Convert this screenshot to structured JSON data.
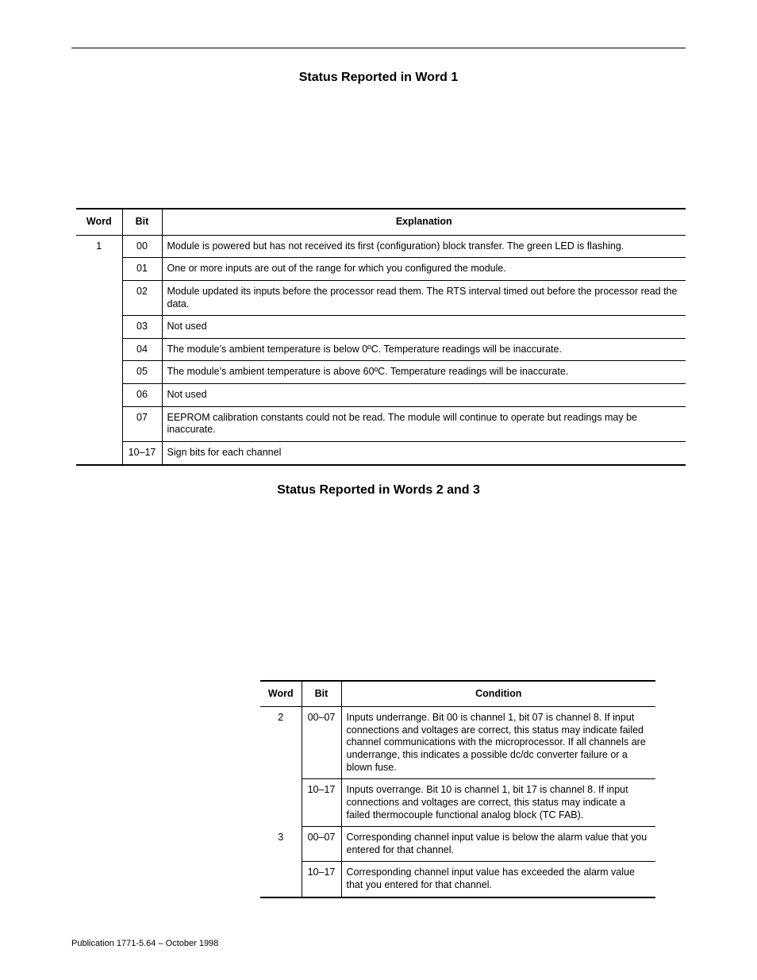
{
  "title1": "Status Reported in Word 1",
  "title2": "Status Reported in Words 2 and 3",
  "footer": "Publication 1771-5.64 – October 1998",
  "table1": {
    "headers": {
      "word": "Word",
      "bit": "Bit",
      "explanation": "Explanation"
    },
    "word": "1",
    "rows": [
      {
        "bit": "00",
        "exp": "Module is powered but has not received its first (configuration) block transfer. The green LED is flashing."
      },
      {
        "bit": "01",
        "exp": "One or more inputs are out of the range for which you configured the module."
      },
      {
        "bit": "02",
        "exp": "Module updated its inputs before the processor read them. The RTS interval timed out before the processor read the data."
      },
      {
        "bit": "03",
        "exp": "Not used"
      },
      {
        "bit": "04",
        "exp": "The module’s ambient temperature is below 0ºC. Temperature readings will be inaccurate."
      },
      {
        "bit": "05",
        "exp": "The module’s ambient temperature is above 60ºC. Temperature readings will be inaccurate."
      },
      {
        "bit": "06",
        "exp": "Not used"
      },
      {
        "bit": "07",
        "exp": "EEPROM calibration constants could not be read. The module will continue to operate but readings may be inaccurate."
      },
      {
        "bit": "10–17",
        "exp": "Sign bits for each channel"
      }
    ]
  },
  "table2": {
    "headers": {
      "word": "Word",
      "bit": "Bit",
      "condition": "Condition"
    },
    "groups": [
      {
        "word": "2",
        "rows": [
          {
            "bit": "00–07",
            "cond": "Inputs underrange. Bit 00 is channel 1, bit 07 is channel 8. If input connections and voltages are correct, this status may indicate failed channel communications with the microprocessor. If all channels are underrange, this indicates a possible dc/dc converter failure or a blown fuse."
          },
          {
            "bit": "10–17",
            "cond": "Inputs overrange. Bit 10 is channel 1, bit 17 is channel 8. If input connections and voltages are correct, this status may indicate a failed thermocouple functional analog block (TC FAB)."
          }
        ]
      },
      {
        "word": "3",
        "rows": [
          {
            "bit": "00–07",
            "cond": "Corresponding channel input value is below the alarm value that you entered for that channel."
          },
          {
            "bit": "10–17",
            "cond": "Corresponding channel input value has exceeded the alarm value that you entered for that channel."
          }
        ]
      }
    ]
  }
}
